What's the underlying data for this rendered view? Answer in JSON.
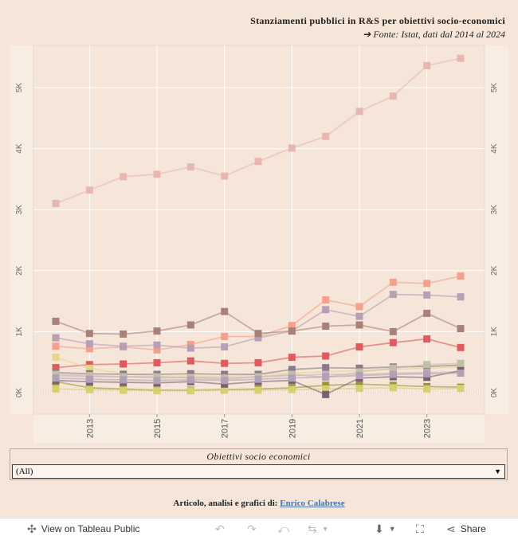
{
  "title": "Stanziamenti pubblici in R&S per obiettivi socio-economici",
  "subtitle": "➔ Fonte:  Istat, dati dal 2014 al 2024",
  "filter": {
    "label": "Obiettivi socio economici",
    "selected": "(All)"
  },
  "credit": {
    "prefix": "Articolo, analisi e grafici di:",
    "author": "Enrico Calabrese"
  },
  "toolbar": {
    "view_label": "View on Tableau Public",
    "share_label": "Share"
  },
  "colors": {
    "background": "#f5e6d9",
    "plot_bg": "#f5e6d9",
    "grid": "#ffffff"
  },
  "chart_data": {
    "type": "line",
    "x": [
      2012,
      2013,
      2014,
      2015,
      2016,
      2017,
      2018,
      2019,
      2020,
      2021,
      2022,
      2023,
      2024
    ],
    "x_ticks": [
      "2013",
      "2015",
      "2017",
      "2019",
      "2021",
      "2023"
    ],
    "y_ticks": [
      "0K",
      "1K",
      "2K",
      "3K",
      "4K",
      "5K"
    ],
    "ylim": [
      -30,
      5800
    ],
    "series": [
      {
        "color": "#e8b8b0",
        "values": [
          3100,
          3320,
          3540,
          3580,
          3700,
          3550,
          3790,
          4010,
          4200,
          4610,
          4860,
          5360,
          5480
        ]
      },
      {
        "color": "#f5a08c",
        "values": [
          760,
          720,
          750,
          700,
          790,
          920,
          920,
          1100,
          1520,
          1410,
          1810,
          1790,
          1910
        ]
      },
      {
        "color": "#b89fb5",
        "values": [
          900,
          800,
          760,
          780,
          730,
          750,
          900,
          1010,
          1360,
          1250,
          1610,
          1600,
          1570
        ]
      },
      {
        "color": "#a8827a",
        "values": [
          1170,
          970,
          960,
          1010,
          1110,
          1330,
          970,
          1010,
          1090,
          1110,
          1000,
          1300,
          1050
        ]
      },
      {
        "color": "#e05a5e",
        "values": [
          410,
          460,
          470,
          490,
          520,
          480,
          490,
          580,
          600,
          750,
          820,
          880,
          740
        ]
      },
      {
        "color": "#e8d48a",
        "values": [
          580,
          400,
          310,
          270,
          270,
          260,
          300,
          320,
          340,
          360,
          380,
          400,
          420
        ]
      },
      {
        "color": "#8a7a8a",
        "values": [
          330,
          310,
          300,
          300,
          310,
          300,
          300,
          380,
          410,
          400,
          420,
          430,
          450
        ]
      },
      {
        "color": "#c9b0c4",
        "values": [
          280,
          260,
          260,
          240,
          250,
          240,
          260,
          280,
          300,
          300,
          320,
          330,
          340
        ]
      },
      {
        "color": "#c0c0a8",
        "values": [
          300,
          280,
          260,
          260,
          240,
          220,
          260,
          300,
          250,
          340,
          400,
          460,
          480
        ]
      },
      {
        "color": "#9a9440",
        "values": [
          180,
          80,
          60,
          40,
          40,
          50,
          60,
          80,
          120,
          140,
          120,
          100,
          90
        ]
      },
      {
        "color": "#d8d070",
        "values": [
          60,
          50,
          40,
          30,
          30,
          40,
          40,
          50,
          60,
          70,
          80,
          60,
          70
        ]
      },
      {
        "color": "#7a6070",
        "values": [
          200,
          180,
          170,
          160,
          180,
          140,
          180,
          200,
          -30,
          240,
          260,
          250,
          360
        ]
      },
      {
        "color": "#b0a0b8",
        "values": [
          240,
          220,
          210,
          200,
          210,
          200,
          220,
          240,
          260,
          280,
          300,
          310,
          320
        ]
      }
    ]
  }
}
